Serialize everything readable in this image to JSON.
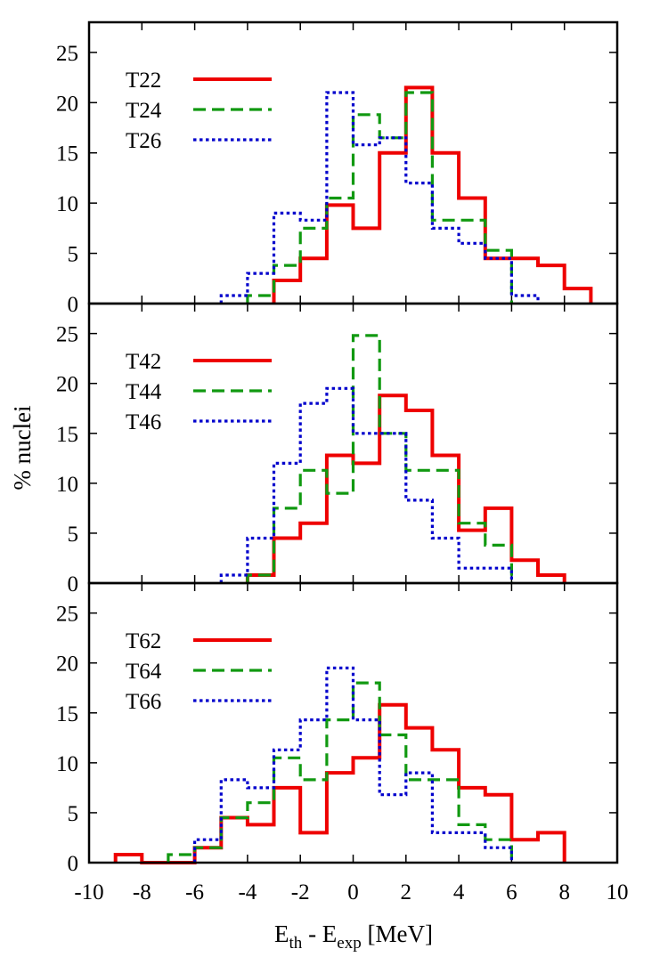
{
  "chart_data": {
    "type": "histogram",
    "layout": "3 vertically stacked panels, shared x-axis",
    "ylabel": "% nuclei",
    "xlabel": {
      "main": "E",
      "sub1": "th",
      "mid": " - E",
      "sub2": "exp",
      "tail": " [MeV]"
    },
    "xlim": [
      -10,
      10
    ],
    "ylim": [
      0,
      28
    ],
    "xticks": [
      -10,
      -8,
      -6,
      -4,
      -2,
      0,
      2,
      4,
      6,
      8,
      10
    ],
    "yticks": [
      0,
      5,
      10,
      15,
      20,
      25
    ],
    "bin_width": 1,
    "legend_position": "top-left",
    "style_colors": {
      "solid": "#ee0000",
      "dashed": "#119911",
      "dotted": "#0000cc"
    },
    "panels": [
      {
        "series": [
          {
            "name": "T22",
            "style": "solid",
            "start": -3,
            "values": [
              2.3,
              4.5,
              9.8,
              7.5,
              15.0,
              21.5,
              15.0,
              10.5,
              4.5,
              4.5,
              3.8,
              1.5
            ]
          },
          {
            "name": "T24",
            "style": "dashed",
            "start": -4,
            "values": [
              0.8,
              3.8,
              7.5,
              10.5,
              18.8,
              16.5,
              21.0,
              8.3,
              8.3,
              5.3
            ]
          },
          {
            "name": "T26",
            "style": "dotted",
            "start": -5,
            "values": [
              0.8,
              3.0,
              9.0,
              8.3,
              21.0,
              15.8,
              16.5,
              12.0,
              7.5,
              6.0,
              4.5,
              0.8
            ]
          }
        ]
      },
      {
        "series": [
          {
            "name": "T42",
            "style": "solid",
            "start": -4,
            "values": [
              0.8,
              4.5,
              6.0,
              12.8,
              12.0,
              18.8,
              17.3,
              12.8,
              5.3,
              7.5,
              2.3,
              0.8
            ]
          },
          {
            "name": "T44",
            "style": "dashed",
            "start": -4,
            "values": [
              0.8,
              7.5,
              11.3,
              9.0,
              24.8,
              15.0,
              11.3,
              11.3,
              6.0,
              3.8
            ]
          },
          {
            "name": "T46",
            "style": "dotted",
            "start": -5,
            "values": [
              0.8,
              4.5,
              12.0,
              18.0,
              19.5,
              15.0,
              15.0,
              8.3,
              4.5,
              1.5,
              1.5
            ]
          }
        ]
      },
      {
        "series": [
          {
            "name": "T62",
            "style": "solid",
            "start": -9,
            "values": [
              0.8,
              0,
              0,
              1.5,
              4.5,
              3.8,
              7.5,
              3.0,
              9.0,
              10.5,
              15.8,
              13.5,
              11.3,
              7.5,
              6.8,
              2.3,
              3.0
            ]
          },
          {
            "name": "T64",
            "style": "dashed",
            "start": -7,
            "values": [
              0.8,
              1.5,
              4.5,
              6.0,
              10.5,
              8.3,
              14.3,
              18.0,
              12.8,
              8.3,
              8.3,
              3.8,
              2.3
            ]
          },
          {
            "name": "T66",
            "style": "dotted",
            "start": -6,
            "values": [
              2.3,
              8.3,
              7.5,
              11.3,
              14.3,
              19.5,
              14.3,
              6.8,
              9.0,
              3.0,
              3.0,
              1.5
            ]
          }
        ]
      }
    ]
  }
}
